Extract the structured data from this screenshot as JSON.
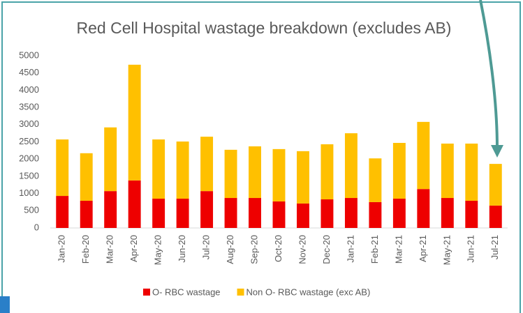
{
  "chart_data": {
    "type": "stacked-bar",
    "title": "Red Cell Hospital wastage breakdown (excludes AB)",
    "categories": [
      "Jan-20",
      "Feb-20",
      "Mar-20",
      "Apr-20",
      "May-20",
      "Jun-20",
      "Jul-20",
      "Aug-20",
      "Sep-20",
      "Oct-20",
      "Nov-20",
      "Dec-20",
      "Jan-21",
      "Feb-21",
      "Mar-21",
      "Apr-21",
      "May-21",
      "Jun-21",
      "Jul-21"
    ],
    "series": [
      {
        "name": "O- RBC wastage",
        "color": "#ee0000",
        "values": [
          930,
          790,
          1070,
          1380,
          850,
          850,
          1070,
          870,
          870,
          770,
          710,
          830,
          870,
          750,
          850,
          1130,
          870,
          790,
          650
        ]
      },
      {
        "name": "Non O- RBC wastage (exc AB)",
        "color": "#ffc000",
        "values": [
          1640,
          1380,
          1850,
          3360,
          1720,
          1660,
          1580,
          1400,
          1500,
          1520,
          1520,
          1600,
          1880,
          1270,
          1620,
          1950,
          1580,
          1660,
          1210
        ]
      }
    ],
    "ylim": [
      0,
      5000
    ],
    "yticks": [
      0,
      500,
      1000,
      1500,
      2000,
      2500,
      3000,
      3500,
      4000,
      4500,
      5000
    ],
    "grid": false,
    "legend": "bottom"
  }
}
